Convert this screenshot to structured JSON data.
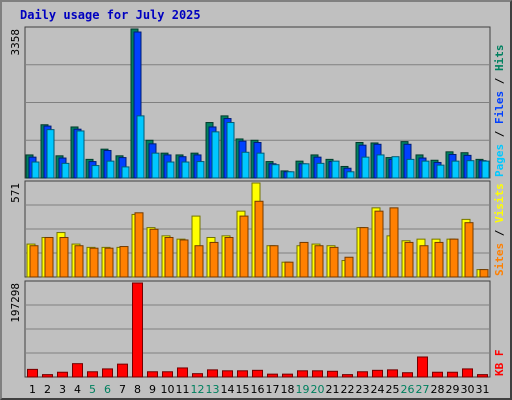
{
  "chart_data": {
    "type": "bar",
    "title": "Daily usage for July 2025",
    "categories": [
      "1",
      "2",
      "3",
      "4",
      "5",
      "6",
      "7",
      "8",
      "9",
      "10",
      "11",
      "12",
      "13",
      "14",
      "15",
      "16",
      "17",
      "18",
      "19",
      "20",
      "21",
      "22",
      "23",
      "24",
      "25",
      "26",
      "27",
      "28",
      "29",
      "30",
      "31"
    ],
    "weekend_days": [
      "5",
      "6",
      "12",
      "13",
      "19",
      "20",
      "26",
      "27"
    ],
    "panels": [
      {
        "name": "hits-files-pages",
        "ymax_label": "3358",
        "ymax": 3358,
        "axis_labels": [
          {
            "text": "Pages",
            "color": "#00c8ff"
          },
          {
            "text": " / ",
            "color": "#000000"
          },
          {
            "text": "Files",
            "color": "#0040ff"
          },
          {
            "text": " / ",
            "color": "#000000"
          },
          {
            "text": "Hits",
            "color": "#00805f"
          }
        ],
        "series": [
          {
            "name": "Hits",
            "color": "#00805f",
            "values": [
              520,
              1200,
              500,
              1150,
              420,
              650,
              500,
              3358,
              850,
              560,
              520,
              560,
              1250,
              1400,
              880,
              850,
              370,
              160,
              380,
              520,
              420,
              260,
              800,
              790,
              460,
              820,
              520,
              400,
              590,
              570,
              420
            ]
          },
          {
            "name": "Files",
            "color": "#0040ff",
            "values": [
              470,
              1170,
              450,
              1100,
              370,
              620,
              460,
              3290,
              770,
              520,
              480,
              520,
              1150,
              1340,
              830,
              800,
              320,
              140,
              320,
              470,
              370,
              220,
              740,
              760,
              420,
              760,
              450,
              350,
              530,
              510,
              390
            ]
          },
          {
            "name": "Pages",
            "color": "#00c8ff",
            "values": [
              360,
              1090,
              330,
              1060,
              280,
              380,
              250,
              1400,
              560,
              360,
              360,
              370,
              1040,
              1250,
              580,
              560,
              300,
              140,
              320,
              330,
              380,
              140,
              470,
              520,
              480,
              420,
              380,
              290,
              380,
              390,
              380
            ]
          }
        ]
      },
      {
        "name": "visits-sites",
        "ymax_label": "571",
        "ymax": 571,
        "axis_labels": [
          {
            "text": "Sites",
            "color": "#ff8000"
          },
          {
            "text": " / ",
            "color": "#000000"
          },
          {
            "text": "Visits",
            "color": "#ffff00"
          }
        ],
        "series": [
          {
            "name": "Visits",
            "color": "#ffff00",
            "values": [
              200,
              240,
              270,
              200,
              180,
              180,
              180,
              380,
              300,
              250,
              230,
              370,
              240,
              250,
              400,
              571,
              190,
              90,
              190,
              200,
              190,
              100,
              300,
              420,
              250,
              220,
              230,
              230,
              230,
              350,
              45
            ]
          },
          {
            "name": "Sites",
            "color": "#ff8000",
            "values": [
              190,
              240,
              240,
              190,
              175,
              175,
              185,
              390,
              290,
              240,
              225,
              190,
              210,
              240,
              370,
              460,
              190,
              90,
              210,
              190,
              180,
              120,
              300,
              400,
              420,
              210,
              190,
              210,
              230,
              330,
              45
            ]
          }
        ]
      },
      {
        "name": "kbytes",
        "ymax_label": "197298",
        "ymax": 197298,
        "axis_labels": [
          {
            "text": "KB F",
            "color": "#ff0000"
          }
        ],
        "series": [
          {
            "name": "KB F",
            "color": "#ff0000",
            "values": [
              16000,
              5000,
              10000,
              28000,
              11000,
              17000,
              27000,
              197298,
              11000,
              11000,
              19000,
              7000,
              15000,
              13000,
              13000,
              14000,
              6000,
              6000,
              13000,
              13000,
              12000,
              5000,
              11000,
              14000,
              15000,
              9000,
              42000,
              10000,
              10000,
              17000,
              5000
            ]
          }
        ]
      }
    ]
  }
}
